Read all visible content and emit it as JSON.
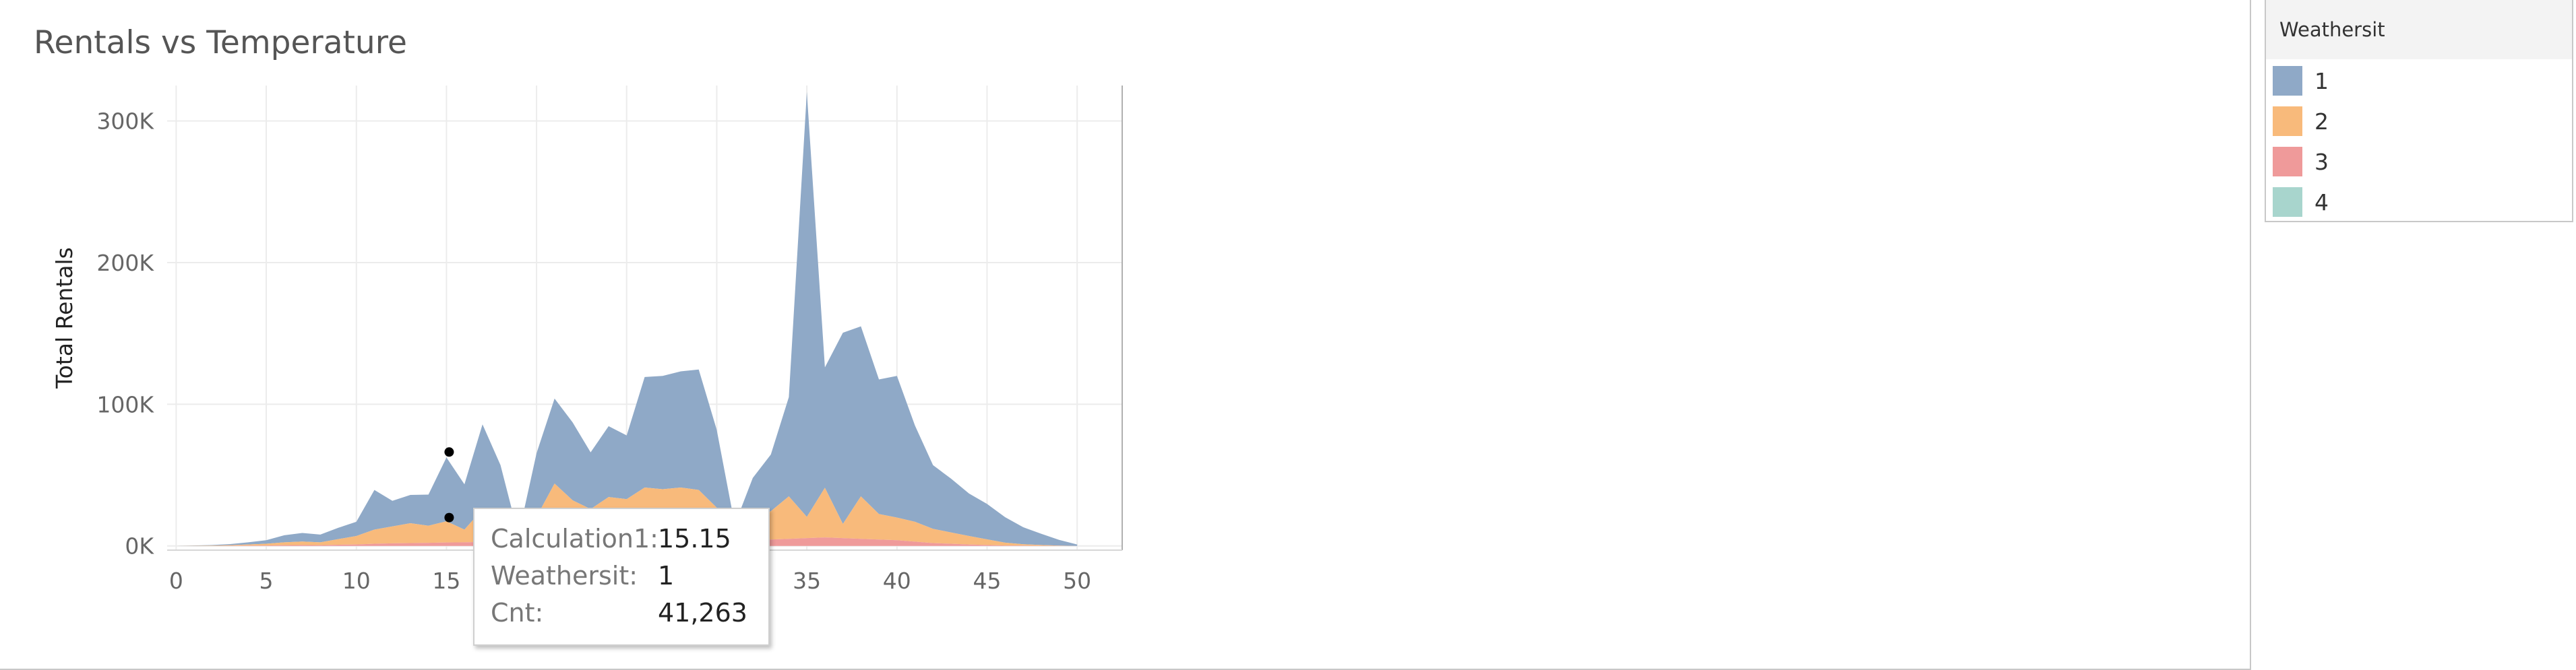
{
  "chart_data": {
    "type": "area",
    "title": "Rentals vs Temperature",
    "xlabel": "",
    "ylabel": "Total Rentals",
    "xlim": [
      -0.5,
      52.5
    ],
    "ylim": [
      -3000,
      325000
    ],
    "xticks": [
      "0",
      "5",
      "10",
      "15",
      "20",
      "25",
      "30",
      "35",
      "40",
      "45",
      "50"
    ],
    "yticks": [
      "0K",
      "100K",
      "200K",
      "300K"
    ],
    "grid": true,
    "stacked": true,
    "legend_position": "right",
    "x": [
      0,
      1,
      2,
      3,
      4,
      5,
      6,
      7,
      8,
      9,
      10,
      11,
      12,
      13,
      14,
      15,
      16,
      17,
      18,
      19,
      20,
      21,
      22,
      23,
      24,
      25,
      26,
      27,
      28,
      29,
      30,
      31,
      32,
      33,
      34,
      35,
      36,
      37,
      38,
      39,
      40,
      41,
      42,
      43,
      44,
      45,
      46,
      47,
      48,
      49,
      50
    ],
    "series": [
      {
        "name": "1",
        "color": "#8fa9c7",
        "values": [
          0,
          200,
          400,
          800,
          1500,
          2500,
          5000,
          6000,
          5500,
          8000,
          10000,
          28000,
          18000,
          20000,
          22000,
          45000,
          32000,
          60000,
          41000,
          5000,
          45000,
          60000,
          55000,
          40000,
          50000,
          45000,
          78000,
          80000,
          82000,
          85000,
          55000,
          10000,
          30000,
          40000,
          70000,
          300000,
          85000,
          135000,
          120000,
          95000,
          100000,
          68000,
          45000,
          38000,
          30000,
          25000,
          18000,
          12000,
          8000,
          4000,
          1000
        ]
      },
      {
        "name": "2",
        "color": "#f8ba7b",
        "values": [
          0,
          100,
          200,
          400,
          800,
          1200,
          2000,
          2500,
          2000,
          4000,
          6000,
          10000,
          12000,
          14000,
          12000,
          15000,
          9000,
          23000,
          13000,
          2000,
          17000,
          40000,
          28000,
          22000,
          30000,
          28000,
          36000,
          35000,
          36000,
          34000,
          22000,
          4000,
          14000,
          20000,
          30000,
          15000,
          35000,
          10000,
          30000,
          18000,
          16000,
          14000,
          10000,
          8000,
          6000,
          4000,
          2000,
          1000,
          500,
          200,
          0
        ]
      },
      {
        "name": "3",
        "color": "#ef9a9a",
        "values": [
          0,
          0,
          0,
          100,
          200,
          300,
          500,
          600,
          500,
          800,
          1000,
          1500,
          1800,
          2000,
          2200,
          2400,
          2500,
          2800,
          3000,
          500,
          3500,
          4000,
          4200,
          4000,
          4500,
          5000,
          5200,
          5000,
          5200,
          5500,
          5000,
          1000,
          4000,
          4500,
          5000,
          5500,
          6000,
          5500,
          5000,
          4500,
          4000,
          3000,
          2000,
          1500,
          1000,
          600,
          300,
          200,
          100,
          50,
          0
        ]
      },
      {
        "name": "4",
        "color": "#a8d5cd",
        "values": [
          0,
          0,
          0,
          0,
          0,
          0,
          0,
          0,
          0,
          0,
          0,
          0,
          0,
          0,
          0,
          0,
          0,
          0,
          0,
          0,
          0,
          0,
          0,
          0,
          0,
          0,
          0,
          0,
          0,
          0,
          0,
          0,
          0,
          0,
          0,
          0,
          0,
          0,
          0,
          0,
          0,
          0,
          0,
          0,
          0,
          0,
          0,
          0,
          0,
          0,
          0
        ]
      }
    ],
    "highlighted_points": [
      {
        "x": 15.15,
        "y": 41263,
        "series": "1"
      },
      {
        "x": 15.15,
        "y": 20000,
        "series": "2"
      }
    ]
  },
  "legend": {
    "title": "Weathersit",
    "items": [
      {
        "label": "1",
        "color": "#8fa9c7"
      },
      {
        "label": "2",
        "color": "#f8ba7b"
      },
      {
        "label": "3",
        "color": "#ef9a9a"
      },
      {
        "label": "4",
        "color": "#a8d5cd"
      }
    ]
  },
  "tooltip": {
    "rows": [
      {
        "label": "Calculation1:",
        "value": "15.15"
      },
      {
        "label": "Weathersit:",
        "value": "1"
      },
      {
        "label": "Cnt:",
        "value": "41,263"
      }
    ]
  }
}
